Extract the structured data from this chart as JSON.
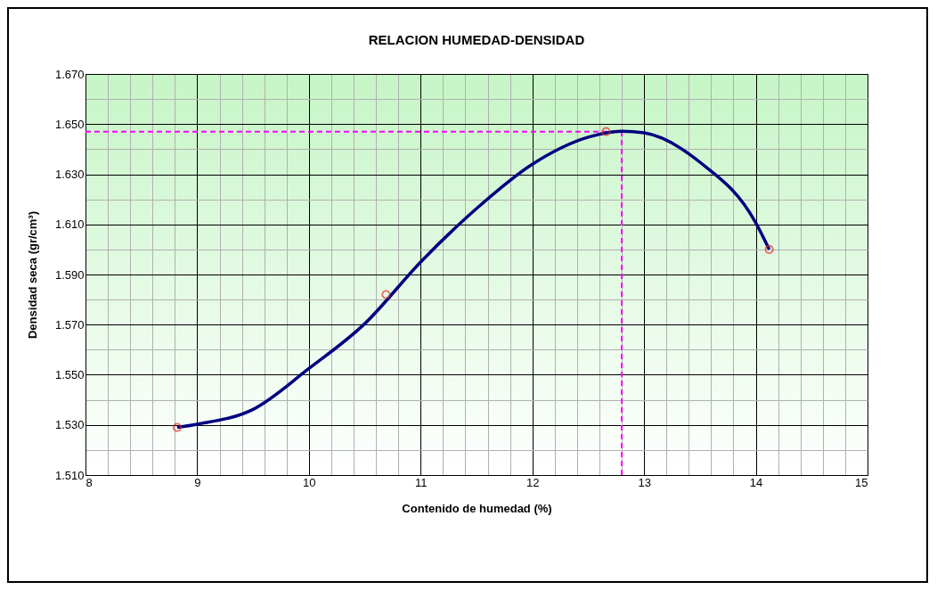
{
  "chart_data": {
    "type": "scatter",
    "title": "RELACION HUMEDAD-DENSIDAD",
    "xlabel": "Contenido de humedad (%)",
    "ylabel": "Densidad seca (gr/cm³)",
    "series": [
      {
        "type": "line",
        "color": "#000080",
        "marker": "none",
        "x": [
          8.82,
          9,
          9.5,
          10,
          10.5,
          11,
          11.5,
          12,
          12.5,
          12.8,
          13,
          13.5,
          14,
          14.12
        ],
        "values": [
          1.529,
          1.5303,
          1.5362,
          1.5525,
          1.5704,
          1.595,
          1.6163,
          1.634,
          1.6448,
          1.6472,
          1.6465,
          1.6348,
          1.6106,
          1.6
        ]
      },
      {
        "color": "#e03030",
        "marker": "circle",
        "x": [
          8.82,
          10.69,
          12.66,
          14.12
        ],
        "values": [
          1.529,
          1.582,
          1.647,
          1.6
        ]
      }
    ],
    "xlim": [
      8,
      15
    ],
    "ylim": [
      1.51,
      1.67
    ],
    "xticks": [
      8,
      {
        "value": 8.2,
        "label": null
      },
      {
        "value": 8.4,
        "label": null
      },
      {
        "value": 8.6,
        "label": null
      },
      {
        "value": 8.8,
        "label": null
      },
      9,
      {
        "value": 9.2,
        "label": null
      },
      {
        "value": 9.4,
        "label": null
      },
      {
        "value": 9.6,
        "label": null
      },
      {
        "value": 9.8,
        "label": null
      },
      10,
      {
        "value": 10.2,
        "label": null
      },
      {
        "value": 10.4,
        "label": null
      },
      {
        "value": 10.6,
        "label": null
      },
      {
        "value": 10.8,
        "label": null
      },
      11,
      {
        "value": 11.2,
        "label": null
      },
      {
        "value": 11.4,
        "label": null
      },
      {
        "value": 11.6,
        "label": null
      },
      {
        "value": 11.8,
        "label": null
      },
      12,
      {
        "value": 12.2,
        "label": null
      },
      {
        "value": 12.4,
        "label": null
      },
      {
        "value": 12.6,
        "label": null
      },
      {
        "value": 12.8,
        "label": null
      },
      13,
      {
        "value": 13.2,
        "label": null
      },
      {
        "value": 13.4,
        "label": null
      },
      {
        "value": 13.6,
        "label": null
      },
      {
        "value": 13.8,
        "label": null
      },
      14,
      {
        "value": 14.2,
        "label": null
      },
      {
        "value": 14.4,
        "label": null
      },
      {
        "value": 14.6,
        "label": null
      },
      {
        "value": 14.8,
        "label": null
      },
      15
    ],
    "yticks": [
      {
        "value": 1.51,
        "label": "1.510"
      },
      {
        "value": 1.52,
        "label": null
      },
      {
        "value": 1.53,
        "label": "1.530"
      },
      {
        "value": 1.54,
        "label": null
      },
      {
        "value": 1.55,
        "label": "1.550"
      },
      {
        "value": 1.56,
        "label": null
      },
      {
        "value": 1.57,
        "label": "1.570"
      },
      {
        "value": 1.58,
        "label": null
      },
      {
        "value": 1.59,
        "label": "1.590"
      },
      {
        "value": 1.6,
        "label": null
      },
      {
        "value": 1.61,
        "label": "1.610"
      },
      {
        "value": 1.62,
        "label": null
      },
      {
        "value": 1.63,
        "label": "1.630"
      },
      {
        "value": 1.64,
        "label": null
      },
      {
        "value": 1.65,
        "label": "1.650"
      },
      {
        "value": 1.66,
        "label": null
      },
      {
        "value": 1.67,
        "label": "1.670"
      }
    ],
    "grid": true,
    "ref_lines": [
      {
        "axis": "y",
        "value": 1.647,
        "color": "#ff00ff",
        "line_style": "dashed"
      },
      {
        "axis": "x",
        "value": 12.8,
        "color": "#ff00ff",
        "line_style": "dashed"
      }
    ]
  }
}
